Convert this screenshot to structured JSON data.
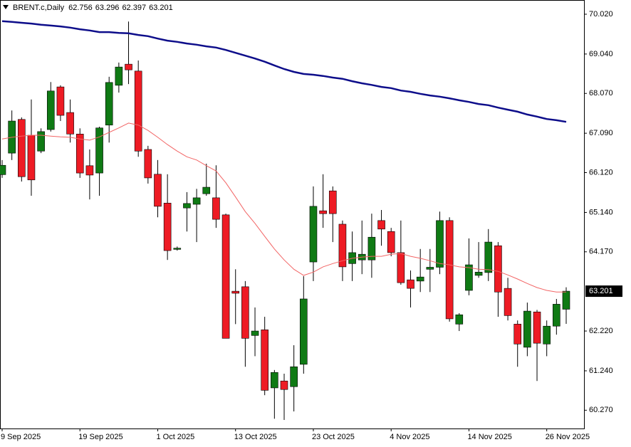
{
  "chart_data": {
    "type": "candlestick",
    "symbol": "BRENT.c,Daily",
    "categories": [
      "9 Sep 2025",
      null,
      null,
      null,
      null,
      null,
      null,
      null,
      "19 Sep 2025",
      null,
      null,
      null,
      null,
      null,
      null,
      null,
      "1 Oct 2025",
      null,
      null,
      null,
      null,
      null,
      null,
      null,
      "13 Oct 2025",
      null,
      null,
      null,
      null,
      null,
      null,
      null,
      "23 Oct 2025",
      null,
      null,
      null,
      null,
      null,
      null,
      null,
      "4 Nov 2025",
      null,
      null,
      null,
      null,
      null,
      null,
      null,
      "14 Nov 2025",
      null,
      null,
      null,
      null,
      null,
      null,
      null,
      "26 Nov 2025",
      null,
      null
    ],
    "open": [
      66.07,
      66.6,
      67.43,
      67.04,
      66.65,
      67.18,
      68.23,
      67.6,
      67.07,
      66.29,
      66.11,
      67.29,
      68.27,
      68.79,
      68.62,
      66.69,
      66.08,
      65.37,
      64.23,
      65.25,
      65.34,
      65.6,
      65.5,
      65.08,
      63.2,
      63.31,
      62.11,
      62.25,
      60.82,
      60.99,
      60.85,
      61.4,
      63.92,
      65.18,
      65.67,
      64.85,
      63.88,
      63.97,
      63.97,
      64.94,
      64.67,
      64.15,
      63.48,
      63.45,
      63.74,
      63.79,
      64.94,
      62.39,
      63.22,
      63.59,
      63.66,
      64.32,
      63.27,
      62.39,
      61.82,
      62.69,
      61.9,
      62.34,
      62.756
    ],
    "high": [
      66.43,
      67.65,
      67.48,
      67.92,
      67.21,
      68.35,
      68.27,
      67.92,
      67.21,
      66.69,
      67.25,
      68.48,
      68.83,
      69.84,
      68.88,
      66.78,
      66.43,
      66.08,
      64.3,
      65.64,
      65.72,
      66.34,
      66.3,
      65.11,
      63.74,
      63.45,
      62.8,
      62.57,
      61.26,
      61.17,
      61.87,
      63.57,
      65.78,
      66.08,
      65.78,
      64.94,
      64.67,
      64.94,
      65.11,
      65.2,
      64.76,
      64.94,
      63.71,
      64.24,
      64.24,
      65.16,
      65.02,
      62.66,
      64.5,
      64.41,
      64.73,
      64.41,
      63.53,
      62.48,
      62.92,
      62.74,
      62.48,
      63.01,
      63.296
    ],
    "low": [
      65.99,
      66.43,
      65.9,
      65.55,
      66.6,
      67.13,
      67.39,
      66.86,
      65.99,
      65.46,
      65.55,
      66.86,
      68.09,
      68.3,
      66.51,
      65.85,
      65.02,
      63.97,
      64.2,
      64.67,
      64.41,
      65.55,
      64.76,
      62.04,
      62.39,
      61.34,
      61.6,
      60.64,
      60.06,
      60.03,
      60.24,
      61.17,
      63.45,
      64.76,
      64.41,
      63.45,
      63.45,
      63.62,
      63.53,
      64.32,
      64.06,
      63.36,
      62.8,
      63.18,
      63.18,
      63.62,
      62.45,
      62.22,
      63.1,
      63.53,
      63.45,
      62.57,
      62.48,
      61.34,
      61.6,
      60.99,
      61.6,
      62.13,
      62.397
    ],
    "close": [
      66.3,
      67.39,
      66.02,
      65.94,
      67.13,
      68.13,
      67.53,
      67.07,
      66.11,
      66.06,
      67.22,
      68.34,
      68.72,
      68.65,
      66.65,
      65.99,
      65.29,
      64.2,
      64.26,
      65.36,
      65.5,
      65.76,
      64.97,
      62.04,
      63.15,
      62.04,
      62.22,
      60.76,
      61.2,
      60.78,
      61.34,
      63.01,
      65.29,
      65.11,
      65.11,
      63.8,
      64.15,
      64.11,
      64.53,
      64.73,
      64.15,
      63.41,
      63.27,
      63.55,
      63.79,
      64.94,
      62.52,
      62.62,
      63.85,
      63.67,
      64.41,
      63.18,
      62.6,
      61.9,
      62.71,
      61.92,
      62.34,
      62.88,
      63.201
    ],
    "up_color": "#0f7a14",
    "down_color": "#ee1b24",
    "lines": [
      {
        "color": "#0d0d8a",
        "width": 2.5,
        "values": [
          69.85,
          69.83,
          69.81,
          69.79,
          69.76,
          69.74,
          69.72,
          69.69,
          69.65,
          69.62,
          69.58,
          69.58,
          69.56,
          69.55,
          69.51,
          69.48,
          69.42,
          69.37,
          69.34,
          69.3,
          69.27,
          69.23,
          69.2,
          69.14,
          69.07,
          69.0,
          68.93,
          68.85,
          68.76,
          68.67,
          68.6,
          68.55,
          68.53,
          68.5,
          68.46,
          68.43,
          68.37,
          68.32,
          68.28,
          68.23,
          68.2,
          68.14,
          68.11,
          68.06,
          68.02,
          67.99,
          67.95,
          67.9,
          67.86,
          67.81,
          67.78,
          67.72,
          67.67,
          67.62,
          67.55,
          67.5,
          67.44,
          67.41,
          67.37
        ]
      },
      {
        "color": "#f26565",
        "width": 1,
        "values": [
          66.95,
          66.99,
          67.02,
          67.04,
          67.04,
          67.02,
          67.0,
          66.99,
          66.95,
          66.92,
          67.0,
          67.11,
          67.22,
          67.34,
          67.29,
          67.16,
          66.99,
          66.81,
          66.65,
          66.51,
          66.43,
          66.29,
          66.16,
          65.87,
          65.52,
          65.16,
          64.87,
          64.55,
          64.24,
          63.97,
          63.74,
          63.59,
          63.67,
          63.8,
          63.88,
          63.95,
          64.01,
          64.04,
          64.06,
          64.06,
          64.11,
          64.13,
          64.06,
          64.01,
          63.95,
          63.88,
          63.85,
          63.8,
          63.78,
          63.74,
          63.73,
          63.69,
          63.6,
          63.5,
          63.39,
          63.29,
          63.22,
          63.18,
          63.18
        ]
      }
    ],
    "ylim": [
      59.82,
      70.37
    ],
    "yticks": [
      {
        "value": 70.02,
        "label": "70.020"
      },
      {
        "value": 69.04,
        "label": "69.040"
      },
      {
        "value": 68.07,
        "label": "68.070"
      },
      {
        "value": 67.09,
        "label": "67.090"
      },
      {
        "value": 66.12,
        "label": "66.120"
      },
      {
        "value": 65.14,
        "label": "65.140"
      },
      {
        "value": 64.17,
        "label": "64.170"
      },
      {
        "value": 62.22,
        "label": "62.220"
      },
      {
        "value": 61.24,
        "label": "61.240"
      },
      {
        "value": 60.27,
        "label": "60.270"
      }
    ]
  }
}
